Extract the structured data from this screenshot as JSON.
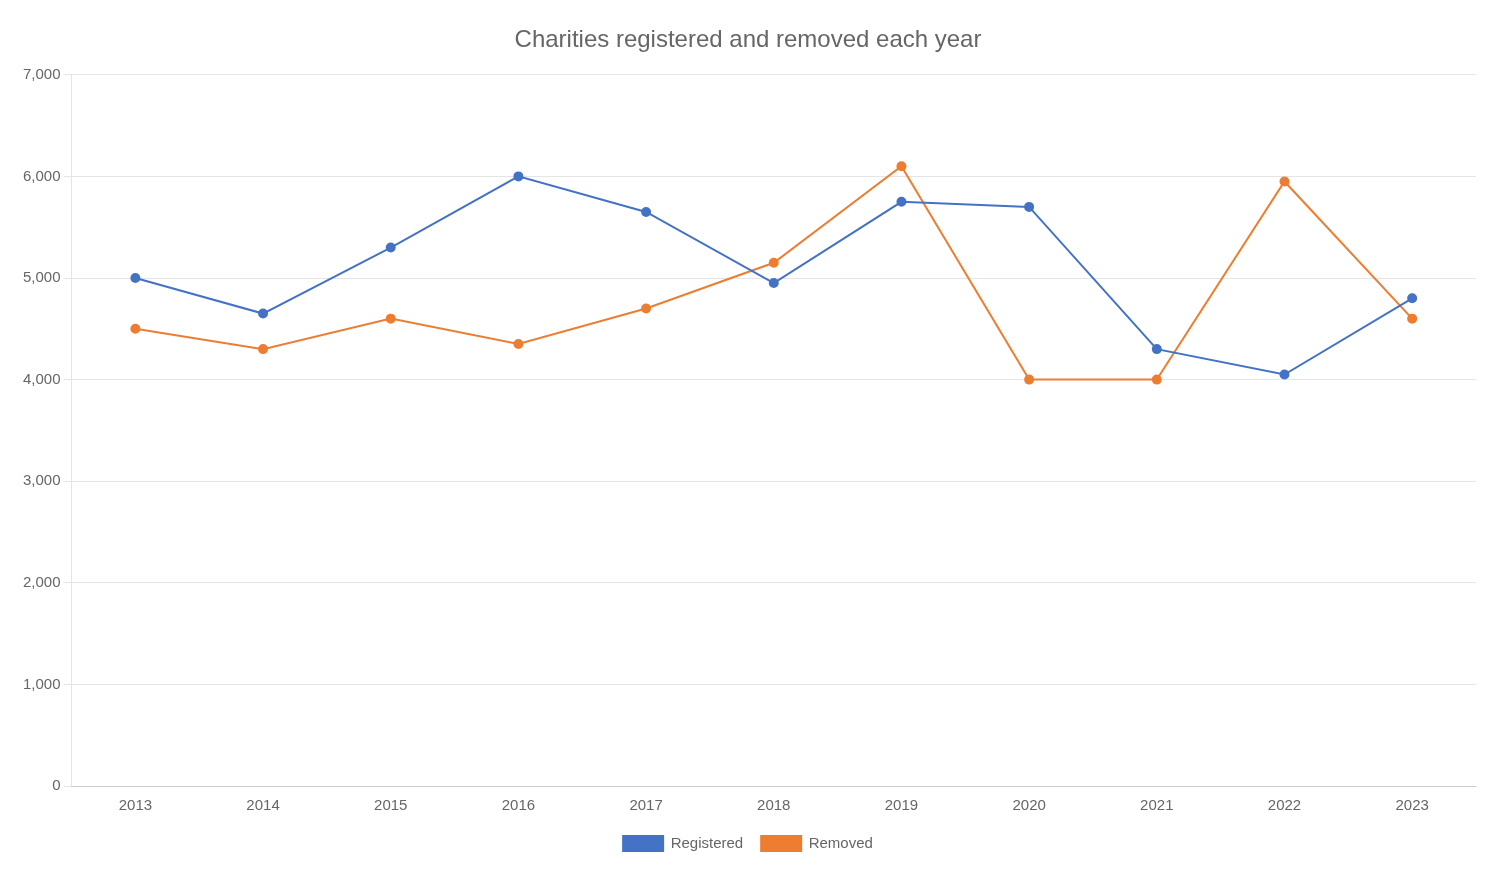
{
  "chart_data": {
    "type": "line",
    "title": "Charities registered and removed each year",
    "categories": [
      "2013",
      "2014",
      "2015",
      "2016",
      "2017",
      "2018",
      "2019",
      "2020",
      "2021",
      "2022",
      "2023"
    ],
    "series": [
      {
        "name": "Registered",
        "color": "#4472C4",
        "values": [
          5000,
          4650,
          5300,
          6000,
          5650,
          4950,
          5750,
          5700,
          4300,
          4050,
          4800
        ]
      },
      {
        "name": "Removed",
        "color": "#ED7D31",
        "values": [
          4500,
          4300,
          4600,
          4350,
          4700,
          5150,
          6100,
          4000,
          4000,
          5950,
          4600
        ]
      }
    ],
    "ylim": [
      0,
      7000
    ],
    "yticks": [
      0,
      {
        "value": 1000,
        "label": "1,000"
      },
      {
        "value": 2000,
        "label": "2,000"
      },
      {
        "value": 3000,
        "label": "3,000"
      },
      {
        "value": 4000,
        "label": "4,000"
      },
      {
        "value": 5000,
        "label": "5,000"
      },
      {
        "value": 6000,
        "label": "6,000"
      },
      {
        "value": 7000,
        "label": "7,000"
      }
    ],
    "grid": true,
    "legend": "bottom",
    "marker": "circle"
  }
}
